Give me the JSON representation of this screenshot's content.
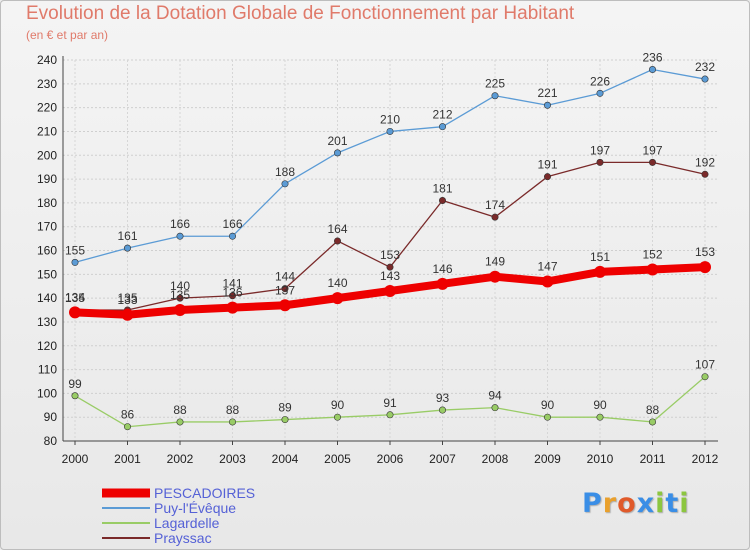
{
  "title": "Evolution de la Dotation Globale de Fonctionnement par Habitant",
  "subtitle": "(en € et par an)",
  "logo": {
    "text": "Proxiti",
    "colors": [
      "#3a8ee6",
      "#e9a02c",
      "#e05a2a",
      "#3a8ee6",
      "#8cc63f",
      "#3a8ee6",
      "#8cc63f"
    ]
  },
  "chart_data": {
    "type": "line",
    "title": "Evolution de la Dotation Globale de Fonctionnement par Habitant",
    "subtitle": "(en € et par an)",
    "xlabel": "",
    "ylabel": "",
    "x": [
      "2000",
      "2001",
      "2002",
      "2003",
      "2004",
      "2005",
      "2006",
      "2007",
      "2008",
      "2009",
      "2010",
      "2011",
      "2012"
    ],
    "ylim": [
      80,
      240
    ],
    "yticks": [
      80,
      90,
      100,
      110,
      120,
      130,
      140,
      150,
      160,
      170,
      180,
      190,
      200,
      210,
      220,
      230,
      240
    ],
    "grid": true,
    "legend": "bottom-left",
    "series": [
      {
        "name": "PESCADOIRES",
        "color": "#ee0000",
        "values": [
          134,
          133,
          135,
          136,
          137,
          140,
          143,
          146,
          149,
          147,
          151,
          152,
          153
        ]
      },
      {
        "name": "Puy-l'Évêque",
        "color": "#5b9bd5",
        "values": [
          155,
          161,
          166,
          166,
          188,
          201,
          210,
          212,
          225,
          221,
          226,
          236,
          232
        ]
      },
      {
        "name": "Lagardelle",
        "color": "#99cc66",
        "values": [
          99,
          86,
          88,
          88,
          89,
          90,
          91,
          93,
          94,
          90,
          90,
          88,
          107
        ]
      },
      {
        "name": "Prayssac",
        "color": "#7a2a2a",
        "values": [
          135,
          135,
          140,
          141,
          144,
          164,
          153,
          181,
          174,
          191,
          197,
          197,
          192
        ]
      }
    ]
  }
}
